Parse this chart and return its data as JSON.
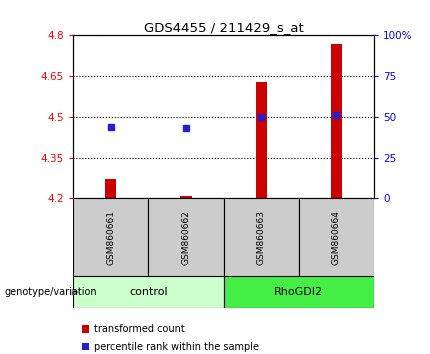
{
  "title": "GDS4455 / 211429_s_at",
  "samples": [
    "GSM860661",
    "GSM860662",
    "GSM860663",
    "GSM860664"
  ],
  "transformed_count": [
    4.27,
    4.21,
    4.63,
    4.77
  ],
  "percentile_rank": [
    44,
    43,
    50,
    51
  ],
  "ylim_left": [
    4.2,
    4.8
  ],
  "ylim_right": [
    0,
    100
  ],
  "yticks_left": [
    4.2,
    4.35,
    4.5,
    4.65,
    4.8
  ],
  "yticks_right": [
    0,
    25,
    50,
    75,
    100
  ],
  "ytick_labels_right": [
    "0",
    "25",
    "50",
    "75",
    "100%"
  ],
  "bar_color": "#cc0000",
  "dot_color": "#2222cc",
  "bar_bottom": 4.2,
  "control_color": "#ccffcc",
  "rhogdi2_color": "#44ee44",
  "label_tc": "transformed count",
  "label_pr": "percentile rank within the sample",
  "genotype_label": "genotype/variation",
  "sample_bg_color": "#cccccc",
  "axis_bg": "#ffffff",
  "bar_width": 0.15
}
